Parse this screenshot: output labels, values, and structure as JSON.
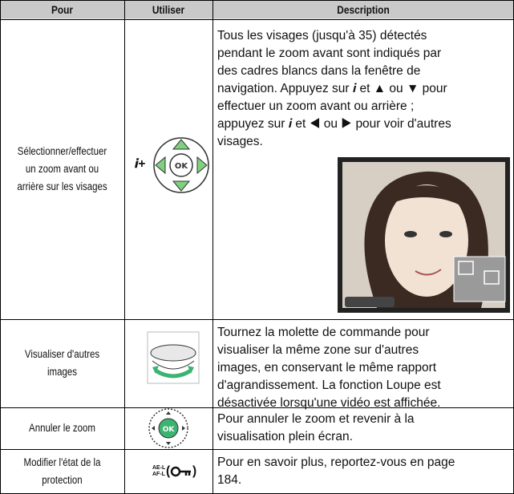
{
  "table": {
    "header": [
      "Pour",
      "Utiliser",
      "Description"
    ],
    "rows": [
      {
        "action": [
          "Sélectionner/effectuer",
          "un zoom avant ou",
          "arrière sur les visages"
        ],
        "control": "𝒊+",
        "description": [
          "Tous les visages (jusqu'à 35) détectés",
          "pendant le zoom avant sont indiqués par",
          "des cadres blancs dans la fenêtre de",
          "navigation. Appuyez sur 𝒊 et ▲ ou ▼ pour",
          "effectuer un zoom avant ou arrière ;",
          "appuyez sur 𝒊 et ◀ ou ▶ pour voir d'autres",
          "visages."
        ]
      },
      {
        "action": [
          "Visualiser d'autres",
          "images"
        ],
        "description": [
          "Tournez la molette de commande pour",
          "visualiser la même zone sur d'autres",
          "images, en conservant le même rapport",
          "d'agrandissement. La fonction Loupe est",
          "désactivée lorsqu'une vidéo est affichée."
        ]
      },
      {
        "action": [
          "Annuler le zoom"
        ],
        "description": [
          "Pour annuler le zoom et revenir à la",
          "visualisation plein écran."
        ]
      },
      {
        "action": [
          "Modifier l'état de la",
          "protection"
        ],
        "control_labels": [
          "AE-L",
          "AF-L"
        ],
        "control_parens": [
          "(",
          ")"
        ],
        "description": [
          "Pour en savoir plus, reportez-vous en page",
          "184."
        ]
      }
    ]
  }
}
